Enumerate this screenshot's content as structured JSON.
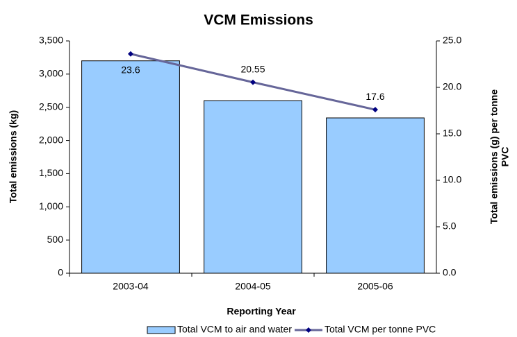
{
  "chart_data": {
    "type": "bar",
    "title": "VCM Emissions",
    "xlabel": "Reporting Year",
    "ylabel": "Total emissions (kg)",
    "y2label": [
      "Total emissions (g) per tonne",
      "PVC"
    ],
    "categories": [
      "2003-04",
      "2004-05",
      "2005-06"
    ],
    "series": [
      {
        "name": "Total VCM to air and water",
        "type": "bar",
        "color": "#99ccff",
        "values": [
          3200,
          2600,
          2340
        ]
      },
      {
        "name": "Total VCM per tonne PVC",
        "type": "line",
        "axis": "y2",
        "color": "#666699",
        "marker_color": "#000080",
        "values": [
          23.6,
          20.55,
          17.6
        ]
      }
    ],
    "ylim": [
      0,
      3500
    ],
    "yticks": [
      0,
      500,
      {
        "value": 1000,
        "label": "1,000"
      },
      {
        "value": 1500,
        "label": "1,500"
      },
      {
        "value": 2000,
        "label": "2,000"
      },
      {
        "value": 2500,
        "label": "2,500"
      },
      {
        "value": 3000,
        "label": "3,000"
      },
      {
        "value": 3500,
        "label": "3,500"
      }
    ],
    "y2lim": [
      0,
      25
    ],
    "y2ticks": [
      {
        "value": 0,
        "label": "0.0"
      },
      {
        "value": 5,
        "label": "5.0"
      },
      {
        "value": 10,
        "label": "10.0"
      },
      {
        "value": 15,
        "label": "15.0"
      },
      {
        "value": 20,
        "label": "20.0"
      },
      {
        "value": 25,
        "label": "25.0"
      }
    ],
    "legend": "bottom"
  }
}
